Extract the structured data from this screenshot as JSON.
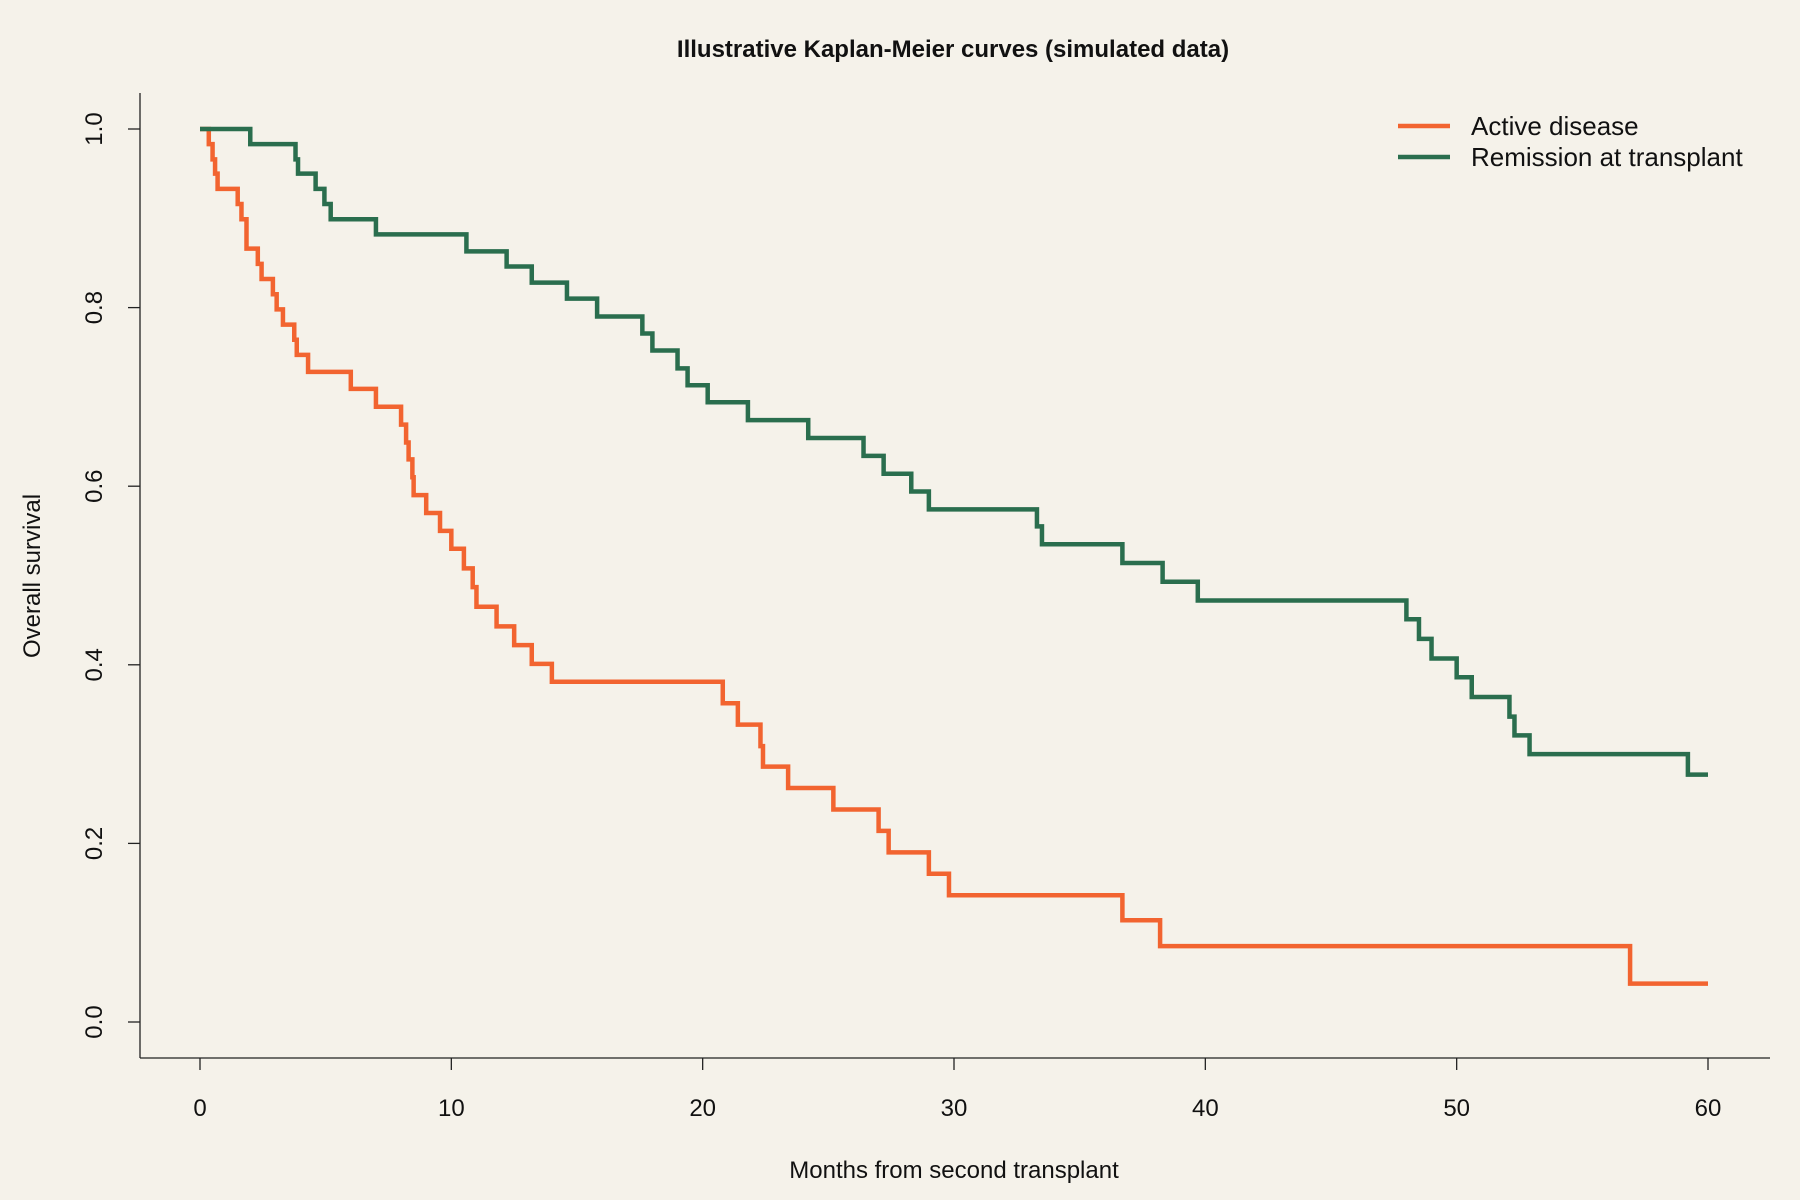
{
  "chart_data": {
    "type": "line",
    "step": true,
    "title": "Illustrative Kaplan-Meier curves (simulated data)",
    "xlabel": "Months from second transplant",
    "ylabel": "Overall survival",
    "xlim": [
      0,
      60
    ],
    "ylim": [
      0,
      1
    ],
    "x_ticks": [
      "0",
      "10",
      "20",
      "30",
      "40",
      "50",
      "60"
    ],
    "y_ticks": [
      "0.0",
      "0.2",
      "0.4",
      "0.6",
      "0.8",
      "1.0"
    ],
    "grid": false,
    "legend_position": "top-right",
    "series": [
      {
        "name": "Active disease",
        "color": "#f26430",
        "points": [
          [
            0,
            1.0
          ],
          [
            0.35,
            0.983
          ],
          [
            0.5,
            0.966
          ],
          [
            0.6,
            0.95
          ],
          [
            0.7,
            0.933
          ],
          [
            1.5,
            0.916
          ],
          [
            1.65,
            0.899
          ],
          [
            1.85,
            0.866
          ],
          [
            2.3,
            0.849
          ],
          [
            2.45,
            0.832
          ],
          [
            2.9,
            0.815
          ],
          [
            3.05,
            0.798
          ],
          [
            3.3,
            0.781
          ],
          [
            3.75,
            0.764
          ],
          [
            3.85,
            0.747
          ],
          [
            4.3,
            0.728
          ],
          [
            6.0,
            0.709
          ],
          [
            7.0,
            0.689
          ],
          [
            8.0,
            0.669
          ],
          [
            8.2,
            0.649
          ],
          [
            8.3,
            0.63
          ],
          [
            8.45,
            0.61
          ],
          [
            8.5,
            0.59
          ],
          [
            9.0,
            0.57
          ],
          [
            9.55,
            0.55
          ],
          [
            10.0,
            0.53
          ],
          [
            10.5,
            0.508
          ],
          [
            10.85,
            0.487
          ],
          [
            11.0,
            0.465
          ],
          [
            11.8,
            0.443
          ],
          [
            12.5,
            0.422
          ],
          [
            13.2,
            0.401
          ],
          [
            14.0,
            0.381
          ],
          [
            20.8,
            0.357
          ],
          [
            21.4,
            0.333
          ],
          [
            22.3,
            0.309
          ],
          [
            22.4,
            0.286
          ],
          [
            23.4,
            0.262
          ],
          [
            25.2,
            0.238
          ],
          [
            27.0,
            0.214
          ],
          [
            27.4,
            0.19
          ],
          [
            29.0,
            0.166
          ],
          [
            29.8,
            0.142
          ],
          [
            36.7,
            0.114
          ],
          [
            38.2,
            0.085
          ],
          [
            56.9,
            0.043
          ]
        ],
        "end_x": 60
      },
      {
        "name": "Remission at transplant",
        "color": "#2a6e4e",
        "points": [
          [
            0,
            1.0
          ],
          [
            2.0,
            0.983
          ],
          [
            3.8,
            0.966
          ],
          [
            3.9,
            0.95
          ],
          [
            4.6,
            0.933
          ],
          [
            4.95,
            0.916
          ],
          [
            5.2,
            0.899
          ],
          [
            7.0,
            0.882
          ],
          [
            10.6,
            0.863
          ],
          [
            12.2,
            0.846
          ],
          [
            13.2,
            0.828
          ],
          [
            14.6,
            0.81
          ],
          [
            15.8,
            0.79
          ],
          [
            17.6,
            0.771
          ],
          [
            18.0,
            0.752
          ],
          [
            19.0,
            0.732
          ],
          [
            19.4,
            0.713
          ],
          [
            20.2,
            0.694
          ],
          [
            21.8,
            0.674
          ],
          [
            24.2,
            0.654
          ],
          [
            26.4,
            0.634
          ],
          [
            27.2,
            0.614
          ],
          [
            28.3,
            0.594
          ],
          [
            29.0,
            0.574
          ],
          [
            33.3,
            0.555
          ],
          [
            33.5,
            0.535
          ],
          [
            36.7,
            0.514
          ],
          [
            38.3,
            0.493
          ],
          [
            39.7,
            0.472
          ],
          [
            48.0,
            0.451
          ],
          [
            48.5,
            0.429
          ],
          [
            49.0,
            0.407
          ],
          [
            50.0,
            0.386
          ],
          [
            50.6,
            0.364
          ],
          [
            52.1,
            0.342
          ],
          [
            52.3,
            0.321
          ],
          [
            52.9,
            0.3
          ],
          [
            59.2,
            0.277
          ]
        ],
        "end_x": 60
      }
    ]
  }
}
